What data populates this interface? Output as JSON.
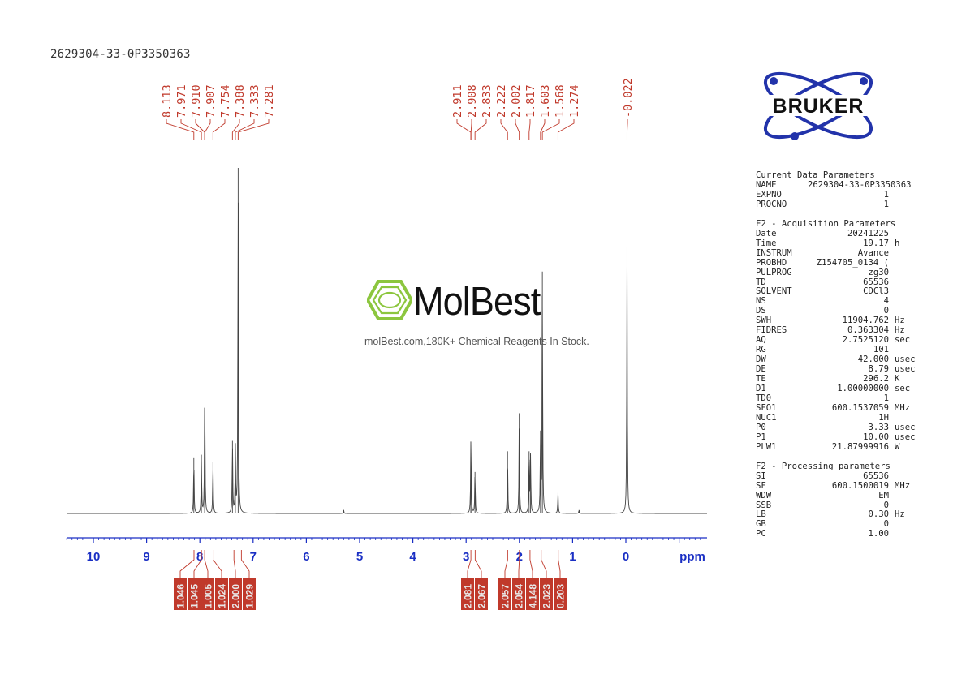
{
  "sample_title": "2629304-33-0P3350363",
  "logo": {
    "brand_text": "BRUKER",
    "colors": {
      "ring": "#2233aa",
      "text": "#111111"
    }
  },
  "watermark": {
    "brand": "MolBest",
    "tagline": "molBest.com,180K+ Chemical Reagents In Stock.",
    "colors": {
      "ring": "#8cc63e",
      "text": "#111111"
    }
  },
  "params": [
    {
      "title": "Current Data Parameters",
      "rows": [
        {
          "name": "NAME",
          "value": "2629304-33-0P3350363",
          "unit": ""
        },
        {
          "name": "EXPNO",
          "value": "1",
          "unit": ""
        },
        {
          "name": "PROCNO",
          "value": "1",
          "unit": ""
        }
      ]
    },
    {
      "title": "F2 - Acquisition Parameters",
      "rows": [
        {
          "name": "Date_",
          "value": "20241225",
          "unit": ""
        },
        {
          "name": "Time",
          "value": "19.17",
          "unit": "h"
        },
        {
          "name": "INSTRUM",
          "value": "Avance",
          "unit": ""
        },
        {
          "name": "PROBHD",
          "value": "Z154705_0134 (",
          "unit": ""
        },
        {
          "name": "PULPROG",
          "value": "zg30",
          "unit": ""
        },
        {
          "name": "TD",
          "value": "65536",
          "unit": ""
        },
        {
          "name": "SOLVENT",
          "value": "CDCl3",
          "unit": ""
        },
        {
          "name": "NS",
          "value": "4",
          "unit": ""
        },
        {
          "name": "DS",
          "value": "0",
          "unit": ""
        },
        {
          "name": "SWH",
          "value": "11904.762",
          "unit": "Hz"
        },
        {
          "name": "FIDRES",
          "value": "0.363304",
          "unit": "Hz"
        },
        {
          "name": "AQ",
          "value": "2.7525120",
          "unit": "sec"
        },
        {
          "name": "RG",
          "value": "101",
          "unit": ""
        },
        {
          "name": "DW",
          "value": "42.000",
          "unit": "usec"
        },
        {
          "name": "DE",
          "value": "8.79",
          "unit": "usec"
        },
        {
          "name": "TE",
          "value": "296.2",
          "unit": "K"
        },
        {
          "name": "D1",
          "value": "1.00000000",
          "unit": "sec"
        },
        {
          "name": "TD0",
          "value": "1",
          "unit": ""
        },
        {
          "name": "SFO1",
          "value": "600.1537059",
          "unit": "MHz"
        },
        {
          "name": "NUC1",
          "value": "1H",
          "unit": ""
        },
        {
          "name": "P0",
          "value": "3.33",
          "unit": "usec"
        },
        {
          "name": "P1",
          "value": "10.00",
          "unit": "usec"
        },
        {
          "name": "PLW1",
          "value": "21.87999916",
          "unit": "W"
        }
      ]
    },
    {
      "title": "F2 - Processing parameters",
      "rows": [
        {
          "name": "SI",
          "value": "65536",
          "unit": ""
        },
        {
          "name": "SF",
          "value": "600.1500019",
          "unit": "MHz"
        },
        {
          "name": "WDW",
          "value": "EM",
          "unit": ""
        },
        {
          "name": "SSB",
          "value": "0",
          "unit": ""
        },
        {
          "name": "LB",
          "value": "0.30",
          "unit": "Hz"
        },
        {
          "name": "GB",
          "value": "0",
          "unit": ""
        },
        {
          "name": "PC",
          "value": "1.00",
          "unit": ""
        }
      ]
    }
  ],
  "chart_data": {
    "type": "line",
    "xlabel": "ppm",
    "xlim": [
      10.5,
      -1.5
    ],
    "x_reversed": true,
    "x_ticks": [
      10,
      9,
      8,
      7,
      6,
      5,
      4,
      3,
      2,
      1,
      0
    ],
    "y_relative_max": 1.0,
    "colors": {
      "spectrum": "#444444",
      "axis": "#1a2fc4",
      "peak_labels": "#c0392b",
      "integrals": "#c0392b"
    },
    "peak_labels": [
      {
        "group": "aromatic",
        "values": [
          8.113,
          7.971,
          7.91,
          7.907,
          7.754,
          7.388,
          7.333,
          7.281
        ]
      },
      {
        "group": "aliphatic",
        "values": [
          2.911,
          2.908,
          2.833,
          2.222,
          2.002,
          1.817,
          1.603,
          1.568,
          1.274
        ]
      },
      {
        "group": "reference",
        "values": [
          -0.022
        ]
      }
    ],
    "peaks": [
      {
        "ppm": 8.113,
        "height": 0.16
      },
      {
        "ppm": 7.971,
        "height": 0.17
      },
      {
        "ppm": 7.91,
        "height": 0.19
      },
      {
        "ppm": 7.907,
        "height": 0.2
      },
      {
        "ppm": 7.754,
        "height": 0.15
      },
      {
        "ppm": 7.388,
        "height": 0.21
      },
      {
        "ppm": 7.333,
        "height": 0.19
      },
      {
        "ppm": 7.281,
        "height": 1.0
      },
      {
        "ppm": 5.3,
        "height": 0.01
      },
      {
        "ppm": 2.911,
        "height": 0.12
      },
      {
        "ppm": 2.908,
        "height": 0.12
      },
      {
        "ppm": 2.833,
        "height": 0.12
      },
      {
        "ppm": 2.222,
        "height": 0.18
      },
      {
        "ppm": 2.002,
        "height": 0.29
      },
      {
        "ppm": 1.817,
        "height": 0.18
      },
      {
        "ppm": 1.79,
        "height": 0.17
      },
      {
        "ppm": 1.603,
        "height": 0.24
      },
      {
        "ppm": 1.568,
        "height": 0.7
      },
      {
        "ppm": 1.274,
        "height": 0.06
      },
      {
        "ppm": 0.88,
        "height": 0.01
      },
      {
        "ppm": -0.022,
        "height": 0.77
      }
    ],
    "integrals": [
      {
        "center": 8.11,
        "value": "1.046"
      },
      {
        "center": 7.97,
        "value": "1.045"
      },
      {
        "center": 7.91,
        "value": "1.005"
      },
      {
        "center": 7.75,
        "value": "1.024"
      },
      {
        "center": 7.36,
        "value": "2.000"
      },
      {
        "center": 7.22,
        "value": "1.029"
      },
      {
        "center": 2.91,
        "value": "2.081"
      },
      {
        "center": 2.83,
        "value": "2.067"
      },
      {
        "center": 2.22,
        "value": "2.057"
      },
      {
        "center": 2.0,
        "value": "2.054"
      },
      {
        "center": 1.8,
        "value": "4.148"
      },
      {
        "center": 1.59,
        "value": "2.023"
      },
      {
        "center": 1.27,
        "value": "0.203"
      }
    ]
  }
}
